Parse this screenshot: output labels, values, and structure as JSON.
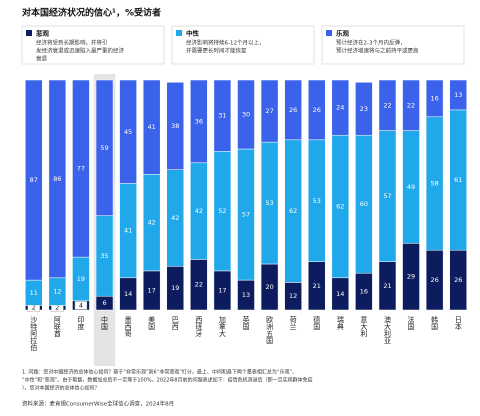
{
  "chart_data": {
    "type": "stacked_bar",
    "title": "对本国经济状况的信心¹，%受访者",
    "categories": [
      "沙特阿拉伯",
      "阿联酋",
      "印度",
      "中国",
      "墨西哥",
      "美国",
      "巴西",
      "西班牙",
      "加拿大",
      "英国",
      "欧洲五国",
      "荷兰",
      "德国",
      "瑞典",
      "意大利",
      "澳大利亚",
      "法国",
      "韩国",
      "日本"
    ],
    "series": [
      {
        "name": "悲观",
        "color": "#0c1c5e",
        "description": [
          "经济将受到长期影响，并将引",
          "发经济衰退或迅速陷入最严重的经济",
          "衰退"
        ],
        "values": [
          2,
          2,
          4,
          6,
          14,
          17,
          19,
          22,
          17,
          13,
          20,
          12,
          21,
          14,
          16,
          21,
          29,
          26,
          26
        ]
      },
      {
        "name": "中性",
        "color": "#20a8ea",
        "description": [
          "经济影响将持续6-12个月以上，",
          "并需要更长时间才能恢复"
        ],
        "values": [
          11,
          12,
          19,
          35,
          41,
          42,
          42,
          42,
          52,
          57,
          53,
          62,
          53,
          62,
          60,
          57,
          49,
          58,
          61
        ]
      },
      {
        "name": "乐观",
        "color": "#3b62ea",
        "description": [
          "预计经济在2-3个月内反弹，",
          "预计经济增速将与之前持平或更高"
        ],
        "values": [
          87,
          86,
          77,
          59,
          45,
          41,
          38,
          36,
          31,
          30,
          27,
          26,
          26,
          24,
          23,
          22,
          22,
          16,
          13
        ]
      }
    ],
    "ylim": [
      0,
      100
    ],
    "footnotes": [
      "1. 问题：您对中国经济的总体信心如何？基于“非常乐观”到6“非常悲观”打分。最上、中间和最下两个量表相汇总为“乐观”、",
      "“中性”和“悲观”。由于取整，数据加总后不一定等于100%。2022年8月前的问题表述如下：疫情危机消退后（即一旦实现群体免疫",
      "），您对本国经济的总体信心如何？"
    ],
    "source": "资料来源：麦肯锡ConsumerWise全球信心调查，2024年8月"
  }
}
